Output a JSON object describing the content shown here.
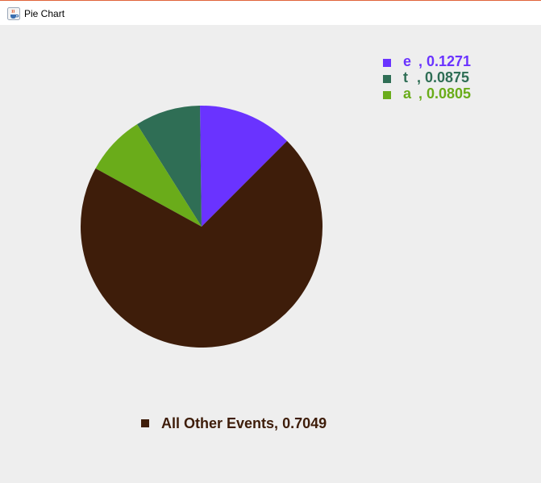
{
  "window": {
    "title": "Pie Chart",
    "icon": "java-cup-icon"
  },
  "chart_data": {
    "type": "pie",
    "title": "",
    "categories": [
      "e",
      "t",
      "a",
      "All Other Events"
    ],
    "values": [
      0.1271,
      0.0875,
      0.0805,
      0.7049
    ],
    "value_labels": [
      "0.1271",
      "0.0875",
      "0.0805",
      "0.7049"
    ],
    "colors": [
      "#6a33ff",
      "#2f6e55",
      "#6aac1a",
      "#3e1d0a"
    ],
    "legend_placement": "top-right",
    "other_label_placement": "bottom-center",
    "start_angle_deg": 45,
    "direction": "counterclockwise"
  }
}
